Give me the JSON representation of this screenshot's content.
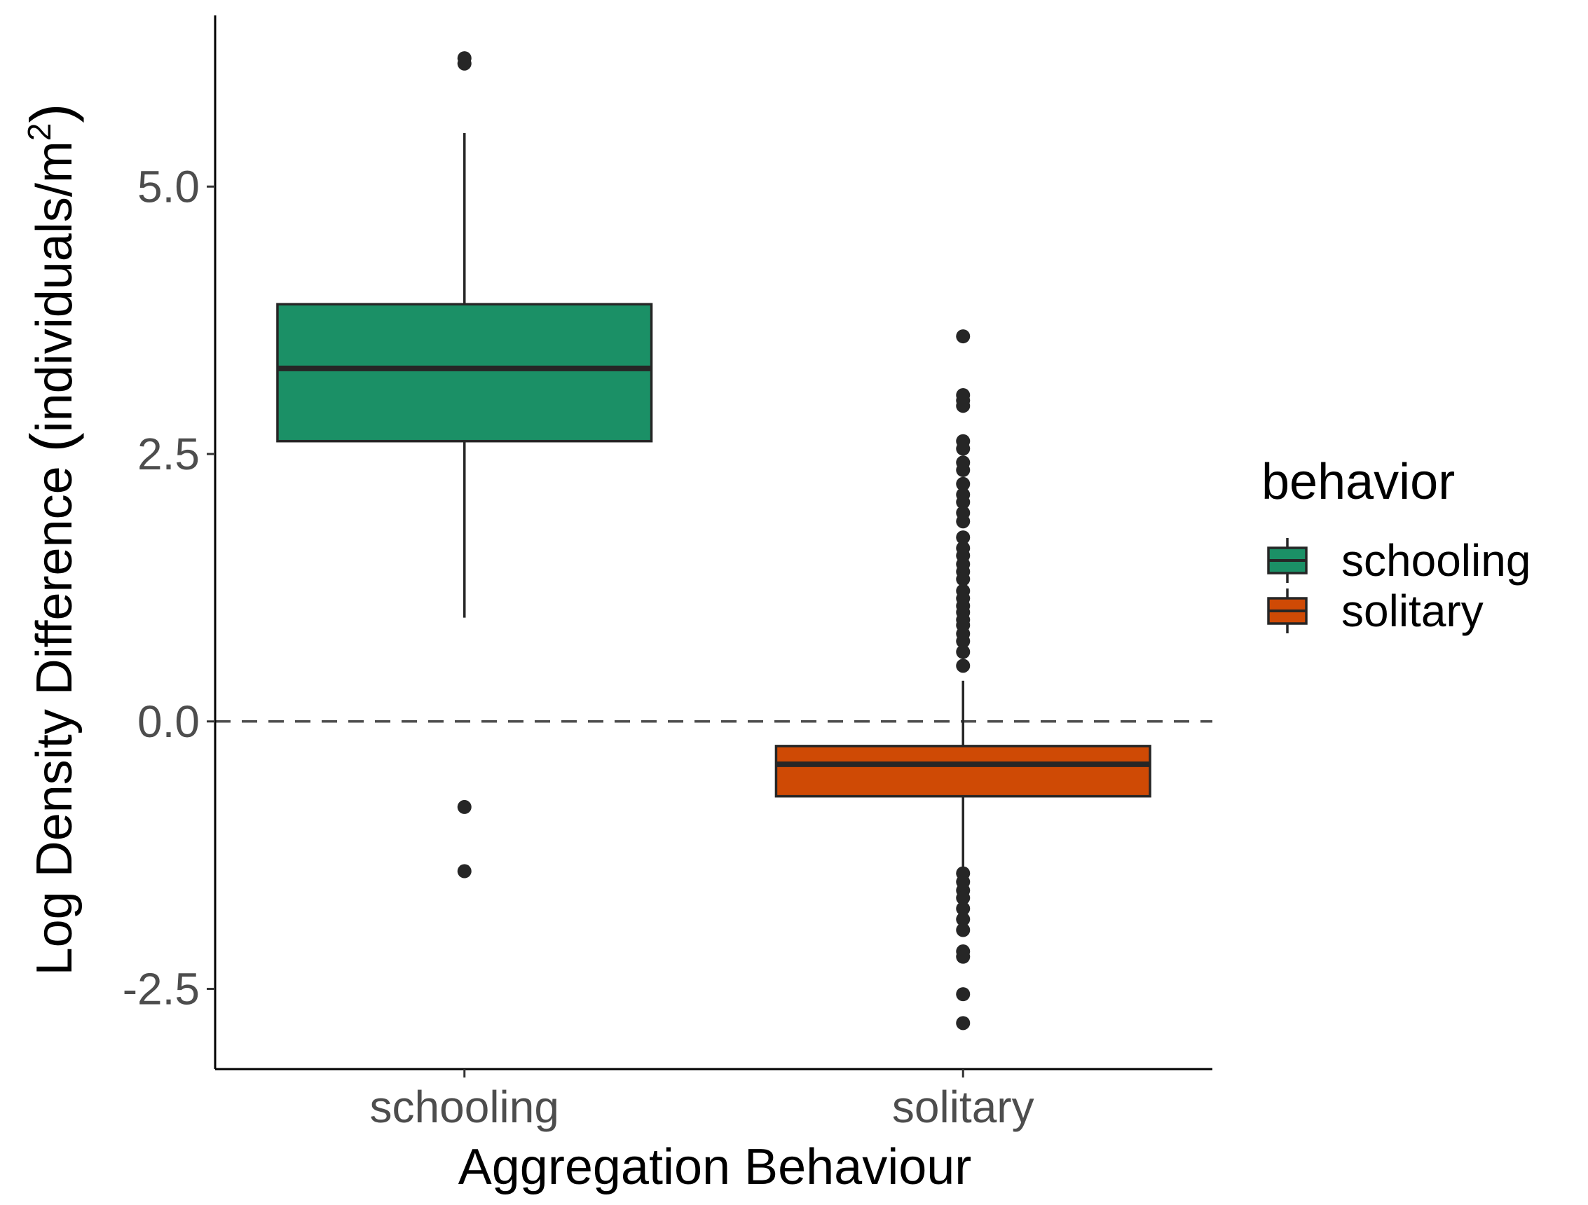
{
  "chart_data": {
    "type": "boxplot",
    "xlabel": "Aggregation Behaviour",
    "ylabel": "Log Density Difference (individuals/m²)",
    "ylabel_parts": {
      "main": "Log Density Difference ",
      "open": "(",
      "unit": "individuals/m",
      "sup": "2",
      "close": ")"
    },
    "ylim": [
      -3.25,
      6.6
    ],
    "y_ticks": [
      -2.5,
      0.0,
      2.5,
      5.0
    ],
    "y_tick_labels": [
      "-2.5",
      "0.0",
      "2.5",
      "5.0"
    ],
    "categories": [
      "schooling",
      "solitary"
    ],
    "reference_line": {
      "y": 0.0,
      "style": "dashed"
    },
    "grid": false,
    "legend": {
      "title": "behavior",
      "position": "right",
      "entries": [
        {
          "label": "schooling",
          "color": "#1b9066"
        },
        {
          "label": "solitary",
          "color": "#cf4a05"
        }
      ]
    },
    "boxes": [
      {
        "category": "schooling",
        "color": "#1b9066",
        "whisker_low": 0.97,
        "q1": 2.62,
        "median": 3.3,
        "q3": 3.9,
        "whisker_high": 5.5,
        "outliers": [
          6.2,
          6.15,
          -0.8,
          -1.4
        ]
      },
      {
        "category": "solitary",
        "color": "#cf4a05",
        "whisker_low": -1.4,
        "q1": -0.7,
        "median": -0.4,
        "q3": -0.23,
        "whisker_high": 0.38,
        "outliers": [
          3.6,
          3.05,
          3.0,
          2.95,
          2.62,
          2.55,
          2.42,
          2.35,
          2.22,
          2.12,
          2.05,
          1.95,
          1.87,
          1.72,
          1.62,
          1.55,
          1.47,
          1.4,
          1.33,
          1.22,
          1.15,
          1.08,
          1.02,
          0.95,
          0.9,
          0.82,
          0.75,
          0.65,
          0.52,
          -1.42,
          -1.5,
          -1.58,
          -1.65,
          -1.75,
          -1.85,
          -1.95,
          -2.15,
          -2.2,
          -2.55,
          -2.82
        ]
      }
    ]
  }
}
